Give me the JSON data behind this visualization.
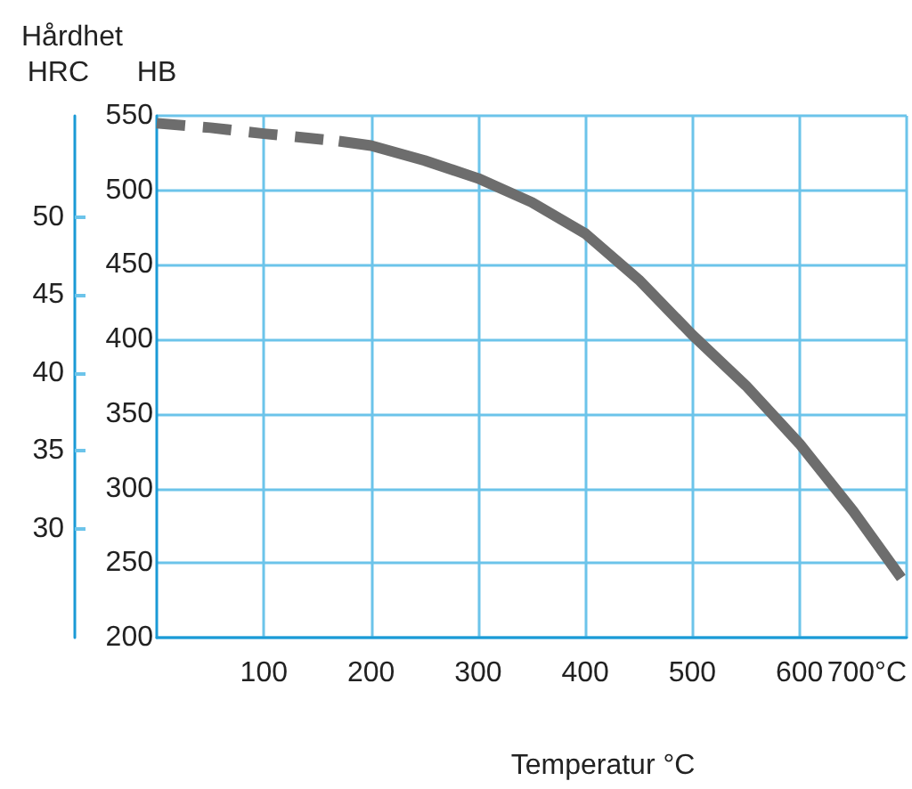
{
  "chart_data": {
    "type": "line",
    "title": "Hårdhet",
    "xlabel": "Temperatur °C",
    "ylabel": "HB",
    "y2label": "HRC",
    "xlim": [
      0,
      700
    ],
    "xticks": [
      100,
      200,
      300,
      400,
      500,
      600,
      {
        "value": 700,
        "label": "700°C"
      }
    ],
    "ylim": [
      200,
      550
    ],
    "yticks": [
      200,
      250,
      300,
      350,
      400,
      450,
      500,
      550
    ],
    "y2lim": [
      23,
      56.5
    ],
    "y2ticks": [
      50,
      45,
      40,
      35,
      30
    ],
    "grid": true,
    "marker": "none",
    "series": [
      {
        "color": "#6d6d6d",
        "line_style": "dashed",
        "x": [
          0,
          50,
          100,
          170
        ],
        "values": [
          545,
          542,
          538,
          533
        ]
      },
      {
        "color": "#6d6d6d",
        "line_style": "solid",
        "x": [
          170,
          200,
          250,
          300,
          350,
          400,
          450,
          500,
          550,
          600,
          650,
          695
        ],
        "values": [
          533,
          530,
          520,
          508,
          492,
          471,
          440,
          403,
          369,
          330,
          285,
          240
        ]
      }
    ]
  }
}
